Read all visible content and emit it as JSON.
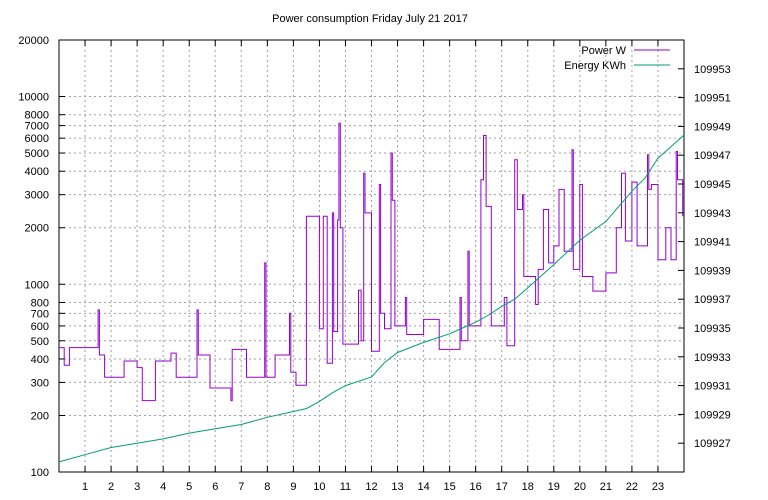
{
  "chart_data": {
    "type": "line",
    "title": "Power consumption Friday July 21 2017",
    "x": {
      "ticks": [
        1,
        2,
        3,
        4,
        5,
        6,
        7,
        8,
        9,
        10,
        11,
        12,
        13,
        14,
        15,
        16,
        17,
        18,
        19,
        20,
        21,
        22,
        23
      ],
      "range": [
        0,
        24
      ]
    },
    "y_left": {
      "scale": "log",
      "range": [
        100,
        20000
      ],
      "ticks": [
        100,
        200,
        300,
        400,
        500,
        600,
        700,
        800,
        1000,
        2000,
        3000,
        4000,
        5000,
        6000,
        7000,
        8000,
        10000,
        20000
      ]
    },
    "y_right": {
      "range": [
        109925,
        109955
      ],
      "ticks": [
        109927,
        109929,
        109931,
        109933,
        109935,
        109937,
        109939,
        109941,
        109943,
        109945,
        109947,
        109949,
        109951,
        109953
      ]
    },
    "grid": true,
    "legend": {
      "position": "top-right"
    },
    "series": [
      {
        "name": "Power W",
        "axis": "left",
        "color": "#9400d3",
        "points": [
          [
            0,
            460
          ],
          [
            0.2,
            460
          ],
          [
            0.2,
            370
          ],
          [
            0.4,
            370
          ],
          [
            0.4,
            460
          ],
          [
            1.5,
            460
          ],
          [
            1.5,
            730
          ],
          [
            1.55,
            730
          ],
          [
            1.55,
            420
          ],
          [
            1.75,
            420
          ],
          [
            1.75,
            320
          ],
          [
            2.5,
            320
          ],
          [
            2.5,
            390
          ],
          [
            3.0,
            390
          ],
          [
            3.0,
            360
          ],
          [
            3.2,
            360
          ],
          [
            3.2,
            240
          ],
          [
            3.7,
            240
          ],
          [
            3.7,
            390
          ],
          [
            4.3,
            390
          ],
          [
            4.3,
            430
          ],
          [
            4.5,
            430
          ],
          [
            4.5,
            320
          ],
          [
            5.3,
            320
          ],
          [
            5.3,
            730
          ],
          [
            5.35,
            730
          ],
          [
            5.35,
            420
          ],
          [
            5.8,
            420
          ],
          [
            5.8,
            280
          ],
          [
            6.6,
            280
          ],
          [
            6.6,
            240
          ],
          [
            6.65,
            240
          ],
          [
            6.65,
            450
          ],
          [
            7.2,
            450
          ],
          [
            7.2,
            320
          ],
          [
            7.9,
            320
          ],
          [
            7.9,
            1300
          ],
          [
            7.95,
            1300
          ],
          [
            7.95,
            320
          ],
          [
            8.3,
            320
          ],
          [
            8.3,
            420
          ],
          [
            8.85,
            420
          ],
          [
            8.85,
            700
          ],
          [
            8.9,
            700
          ],
          [
            8.9,
            340
          ],
          [
            9.1,
            340
          ],
          [
            9.1,
            290
          ],
          [
            9.5,
            290
          ],
          [
            9.5,
            2300
          ],
          [
            9.55,
            2300
          ],
          [
            9.55,
            2300
          ],
          [
            10.0,
            2300
          ],
          [
            10.0,
            580
          ],
          [
            10.15,
            580
          ],
          [
            10.15,
            2300
          ],
          [
            10.3,
            2300
          ],
          [
            10.3,
            380
          ],
          [
            10.5,
            380
          ],
          [
            10.5,
            2400
          ],
          [
            10.55,
            2400
          ],
          [
            10.55,
            560
          ],
          [
            10.7,
            560
          ],
          [
            10.7,
            2200
          ],
          [
            10.75,
            2200
          ],
          [
            10.75,
            7200
          ],
          [
            10.8,
            7200
          ],
          [
            10.8,
            2000
          ],
          [
            10.9,
            2000
          ],
          [
            10.9,
            480
          ],
          [
            11.5,
            480
          ],
          [
            11.5,
            930
          ],
          [
            11.6,
            930
          ],
          [
            11.6,
            500
          ],
          [
            11.7,
            500
          ],
          [
            11.7,
            3900
          ],
          [
            11.75,
            3900
          ],
          [
            11.75,
            2400
          ],
          [
            12.0,
            2400
          ],
          [
            12.0,
            440
          ],
          [
            12.3,
            440
          ],
          [
            12.3,
            3400
          ],
          [
            12.35,
            3400
          ],
          [
            12.35,
            700
          ],
          [
            12.5,
            700
          ],
          [
            12.5,
            580
          ],
          [
            12.75,
            580
          ],
          [
            12.75,
            5000
          ],
          [
            12.8,
            5000
          ],
          [
            12.8,
            2800
          ],
          [
            12.9,
            2800
          ],
          [
            12.9,
            600
          ],
          [
            13.3,
            600
          ],
          [
            13.3,
            850
          ],
          [
            13.35,
            850
          ],
          [
            13.35,
            540
          ],
          [
            14.0,
            540
          ],
          [
            14.0,
            650
          ],
          [
            14.6,
            650
          ],
          [
            14.6,
            450
          ],
          [
            15.4,
            450
          ],
          [
            15.4,
            850
          ],
          [
            15.45,
            850
          ],
          [
            15.45,
            500
          ],
          [
            15.7,
            500
          ],
          [
            15.7,
            1500
          ],
          [
            15.75,
            1500
          ],
          [
            15.75,
            600
          ],
          [
            16.2,
            600
          ],
          [
            16.2,
            3600
          ],
          [
            16.3,
            3600
          ],
          [
            16.3,
            6200
          ],
          [
            16.4,
            6200
          ],
          [
            16.4,
            2600
          ],
          [
            16.6,
            2600
          ],
          [
            16.6,
            600
          ],
          [
            17.1,
            600
          ],
          [
            17.1,
            850
          ],
          [
            17.2,
            850
          ],
          [
            17.2,
            470
          ],
          [
            17.5,
            470
          ],
          [
            17.5,
            4600
          ],
          [
            17.6,
            4600
          ],
          [
            17.6,
            2500
          ],
          [
            17.8,
            2500
          ],
          [
            17.8,
            3000
          ],
          [
            17.85,
            3000
          ],
          [
            17.85,
            1100
          ],
          [
            18.3,
            1100
          ],
          [
            18.3,
            780
          ],
          [
            18.4,
            780
          ],
          [
            18.4,
            1200
          ],
          [
            18.6,
            1200
          ],
          [
            18.6,
            2500
          ],
          [
            18.8,
            2500
          ],
          [
            18.8,
            1300
          ],
          [
            19.0,
            1300
          ],
          [
            19.0,
            1600
          ],
          [
            19.2,
            1600
          ],
          [
            19.2,
            3200
          ],
          [
            19.4,
            3200
          ],
          [
            19.4,
            1500
          ],
          [
            19.7,
            1500
          ],
          [
            19.7,
            5200
          ],
          [
            19.75,
            5200
          ],
          [
            19.75,
            1200
          ],
          [
            20.0,
            1200
          ],
          [
            20.0,
            3400
          ],
          [
            20.1,
            3400
          ],
          [
            20.1,
            1100
          ],
          [
            20.5,
            1100
          ],
          [
            20.5,
            920
          ],
          [
            21.0,
            920
          ],
          [
            21.0,
            1150
          ],
          [
            21.4,
            1150
          ],
          [
            21.4,
            2000
          ],
          [
            21.6,
            2000
          ],
          [
            21.6,
            3900
          ],
          [
            21.75,
            3900
          ],
          [
            21.75,
            1700
          ],
          [
            22.0,
            1700
          ],
          [
            22.0,
            3500
          ],
          [
            22.2,
            3500
          ],
          [
            22.2,
            1600
          ],
          [
            22.6,
            1600
          ],
          [
            22.6,
            4900
          ],
          [
            22.65,
            4900
          ],
          [
            22.65,
            3200
          ],
          [
            22.75,
            3200
          ],
          [
            22.75,
            3400
          ],
          [
            23.0,
            3400
          ],
          [
            23.0,
            1350
          ],
          [
            23.3,
            1350
          ],
          [
            23.3,
            2000
          ],
          [
            23.5,
            2000
          ],
          [
            23.5,
            1350
          ],
          [
            23.7,
            1350
          ],
          [
            23.7,
            5100
          ],
          [
            23.75,
            5100
          ],
          [
            23.75,
            3600
          ],
          [
            23.95,
            3600
          ],
          [
            23.95,
            2300
          ]
        ]
      },
      {
        "name": "Energy KWh",
        "axis": "right",
        "color": "#009e73",
        "points": [
          [
            0,
            109925.7
          ],
          [
            1,
            109926.2
          ],
          [
            2,
            109926.7
          ],
          [
            3,
            109927.0
          ],
          [
            4,
            109927.3
          ],
          [
            5,
            109927.7
          ],
          [
            6,
            109928.0
          ],
          [
            7,
            109928.3
          ],
          [
            8,
            109928.8
          ],
          [
            9,
            109929.2
          ],
          [
            9.5,
            109929.4
          ],
          [
            10,
            109929.9
          ],
          [
            10.5,
            109930.5
          ],
          [
            11,
            109931.0
          ],
          [
            11.5,
            109931.3
          ],
          [
            12,
            109931.6
          ],
          [
            12.5,
            109932.6
          ],
          [
            13,
            109933.3
          ],
          [
            14,
            109934.0
          ],
          [
            15,
            109934.6
          ],
          [
            15.5,
            109935.0
          ],
          [
            16,
            109935.4
          ],
          [
            16.5,
            109935.9
          ],
          [
            17,
            109936.5
          ],
          [
            17.5,
            109937.0
          ],
          [
            18,
            109937.8
          ],
          [
            19,
            109939.4
          ],
          [
            20,
            109941.1
          ],
          [
            21,
            109942.4
          ],
          [
            22,
            109944.5
          ],
          [
            22.5,
            109945.4
          ],
          [
            23,
            109946.8
          ],
          [
            23.5,
            109947.6
          ],
          [
            24,
            109948.4
          ]
        ]
      }
    ]
  }
}
